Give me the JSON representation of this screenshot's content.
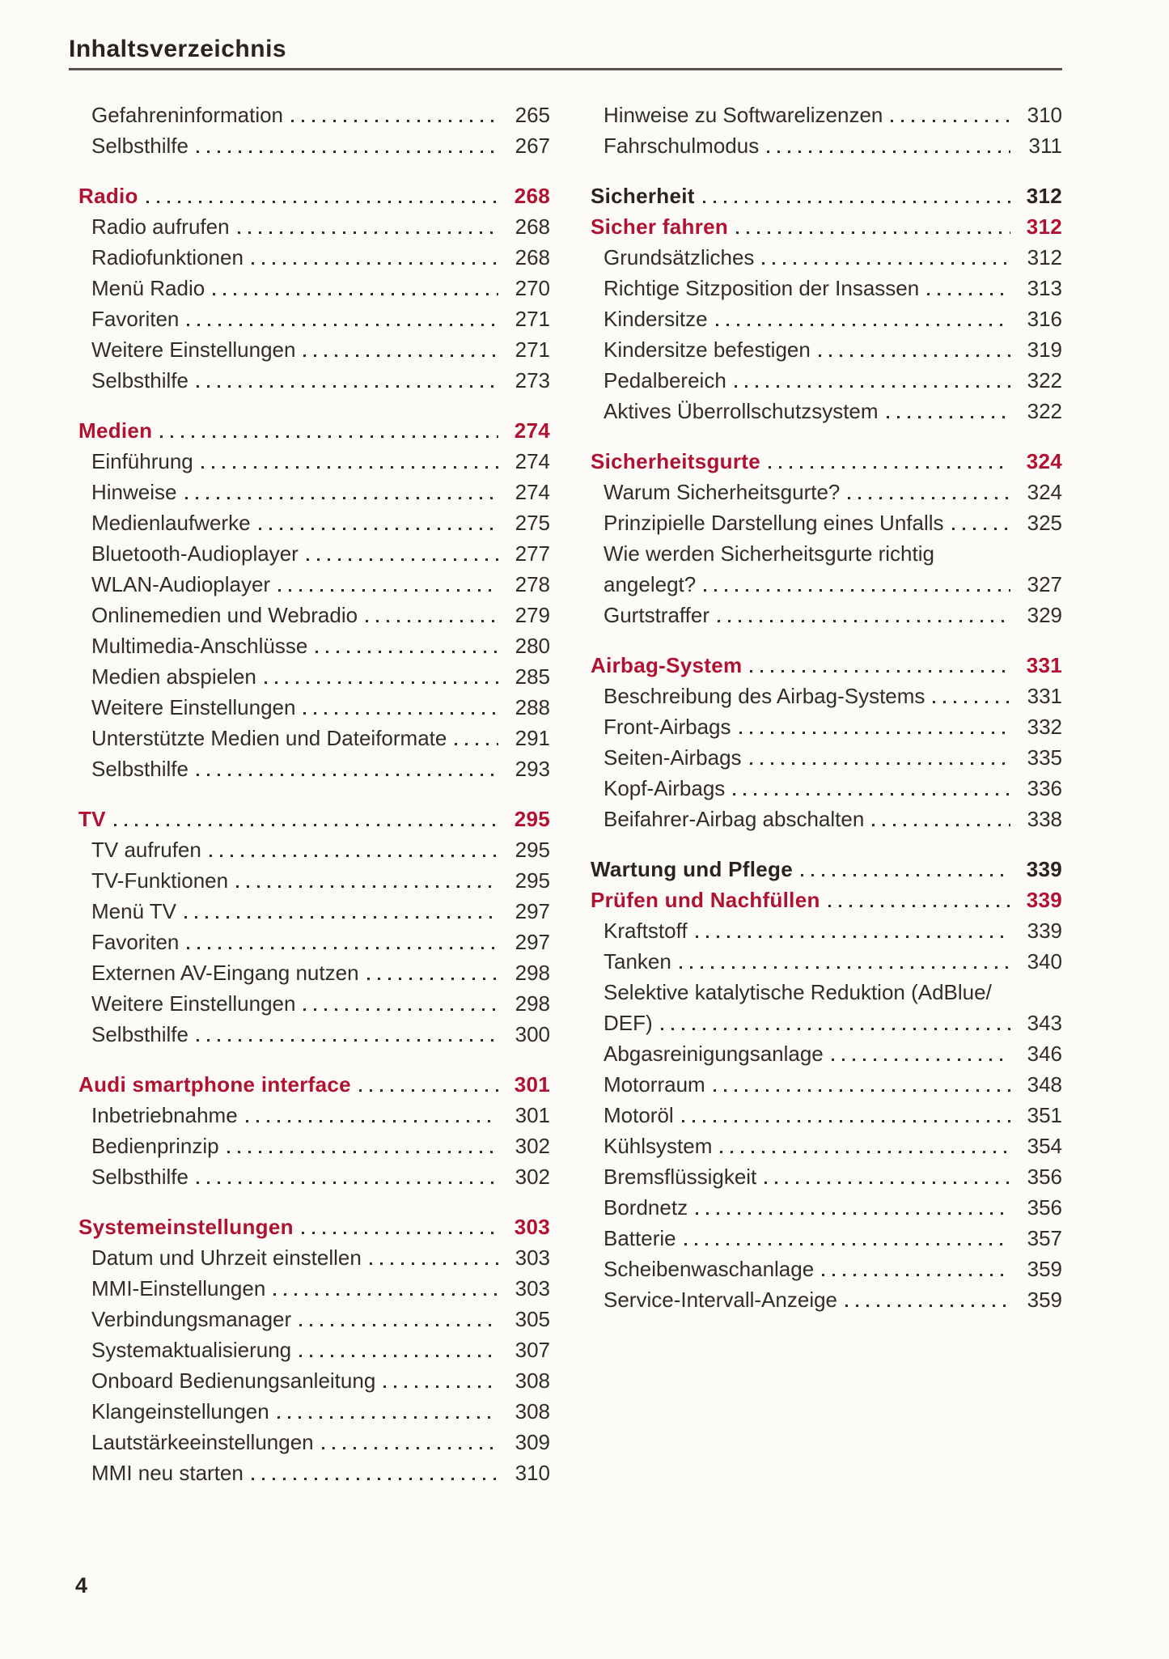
{
  "header": {
    "title": "Inhaltsverzeichnis"
  },
  "footer": {
    "page_number": "4"
  },
  "colors": {
    "accent_red": "#b01232",
    "text": "#312d27",
    "rule": "#55514a",
    "paper": "#fcfbf8"
  },
  "columns": [
    {
      "groups": [
        {
          "entries": [
            {
              "text": "Gefahreninformation",
              "page": "265"
            },
            {
              "text": "Selbsthilfe",
              "page": "267"
            }
          ]
        },
        {
          "entries": [
            {
              "text": "Radio",
              "page": "268",
              "style": "chapter"
            },
            {
              "text": "Radio aufrufen",
              "page": "268"
            },
            {
              "text": "Radiofunktionen",
              "page": "268"
            },
            {
              "text": "Menü Radio",
              "page": "270"
            },
            {
              "text": "Favoriten",
              "page": "271"
            },
            {
              "text": "Weitere Einstellungen",
              "page": "271"
            },
            {
              "text": "Selbsthilfe",
              "page": "273"
            }
          ]
        },
        {
          "entries": [
            {
              "text": "Medien",
              "page": "274",
              "style": "chapter"
            },
            {
              "text": "Einführung",
              "page": "274"
            },
            {
              "text": "Hinweise",
              "page": "274"
            },
            {
              "text": "Medienlaufwerke",
              "page": "275"
            },
            {
              "text": "Bluetooth-Audioplayer",
              "page": "277"
            },
            {
              "text": "WLAN-Audioplayer",
              "page": "278"
            },
            {
              "text": "Onlinemedien und Webradio",
              "page": "279"
            },
            {
              "text": "Multimedia-Anschlüsse",
              "page": "280"
            },
            {
              "text": "Medien abspielen",
              "page": "285"
            },
            {
              "text": "Weitere Einstellungen",
              "page": "288"
            },
            {
              "text": "Unterstützte Medien und Dateiformate",
              "page": "291"
            },
            {
              "text": "Selbsthilfe",
              "page": "293"
            }
          ]
        },
        {
          "entries": [
            {
              "text": "TV",
              "page": "295",
              "style": "chapter"
            },
            {
              "text": "TV aufrufen",
              "page": "295"
            },
            {
              "text": "TV-Funktionen",
              "page": "295"
            },
            {
              "text": "Menü TV",
              "page": "297"
            },
            {
              "text": "Favoriten",
              "page": "297"
            },
            {
              "text": "Externen AV-Eingang nutzen",
              "page": "298"
            },
            {
              "text": "Weitere Einstellungen",
              "page": "298"
            },
            {
              "text": "Selbsthilfe",
              "page": "300"
            }
          ]
        },
        {
          "entries": [
            {
              "text": "Audi smartphone interface",
              "page": "301",
              "style": "chapter"
            },
            {
              "text": "Inbetriebnahme",
              "page": "301"
            },
            {
              "text": "Bedienprinzip",
              "page": "302"
            },
            {
              "text": "Selbsthilfe",
              "page": "302"
            }
          ]
        },
        {
          "entries": [
            {
              "text": "Systemeinstellungen",
              "page": "303",
              "style": "chapter"
            },
            {
              "text": "Datum und Uhrzeit einstellen",
              "page": "303"
            },
            {
              "text": "MMI-Einstellungen",
              "page": "303"
            },
            {
              "text": "Verbindungsmanager",
              "page": "305"
            },
            {
              "text": "Systemaktualisierung",
              "page": "307"
            },
            {
              "text": "Onboard Bedienungsanleitung",
              "page": "308"
            },
            {
              "text": "Klangeinstellungen",
              "page": "308"
            },
            {
              "text": "Lautstärkeeinstellungen",
              "page": "309"
            },
            {
              "text": "MMI neu starten",
              "page": "310"
            }
          ]
        }
      ]
    },
    {
      "groups": [
        {
          "entries": [
            {
              "text": "Hinweise zu Softwarelizenzen",
              "page": "310"
            },
            {
              "text": "Fahrschulmodus",
              "page": "311"
            }
          ]
        },
        {
          "entries": [
            {
              "text": "Sicherheit",
              "page": "312",
              "style": "part"
            },
            {
              "text": "Sicher fahren",
              "page": "312",
              "style": "chapter"
            },
            {
              "text": "Grundsätzliches",
              "page": "312"
            },
            {
              "text": "Richtige Sitzposition der Insassen",
              "page": "313"
            },
            {
              "text": "Kindersitze",
              "page": "316"
            },
            {
              "text": "Kindersitze befestigen",
              "page": "319"
            },
            {
              "text": "Pedalbereich",
              "page": "322"
            },
            {
              "text": "Aktives Überrollschutzsystem",
              "page": "322"
            }
          ]
        },
        {
          "entries": [
            {
              "text": "Sicherheitsgurte",
              "page": "324",
              "style": "chapter"
            },
            {
              "text": "Warum Sicherheitsgurte?",
              "page": "324"
            },
            {
              "text": "Prinzipielle Darstellung eines Unfalls",
              "page": "325"
            },
            {
              "lines": [
                "Wie werden Sicherheitsgurte richtig",
                "angelegt?"
              ],
              "page": "327"
            },
            {
              "text": "Gurtstraffer",
              "page": "329"
            }
          ]
        },
        {
          "entries": [
            {
              "text": "Airbag-System",
              "page": "331",
              "style": "chapter"
            },
            {
              "text": "Beschreibung des Airbag-Systems",
              "page": "331"
            },
            {
              "text": "Front-Airbags",
              "page": "332"
            },
            {
              "text": "Seiten-Airbags",
              "page": "335"
            },
            {
              "text": "Kopf-Airbags",
              "page": "336"
            },
            {
              "text": "Beifahrer-Airbag abschalten",
              "page": "338"
            }
          ]
        },
        {
          "entries": [
            {
              "text": "Wartung und Pflege",
              "page": "339",
              "style": "part"
            },
            {
              "text": "Prüfen und Nachfüllen",
              "page": "339",
              "style": "chapter"
            },
            {
              "text": "Kraftstoff",
              "page": "339"
            },
            {
              "text": "Tanken",
              "page": "340"
            },
            {
              "lines": [
                "Selektive katalytische Reduktion (AdBlue/",
                "DEF)"
              ],
              "page": "343"
            },
            {
              "text": "Abgasreinigungsanlage",
              "page": "346"
            },
            {
              "text": "Motorraum",
              "page": "348"
            },
            {
              "text": "Motoröl",
              "page": "351"
            },
            {
              "text": "Kühlsystem",
              "page": "354"
            },
            {
              "text": "Bremsflüssigkeit",
              "page": "356"
            },
            {
              "text": "Bordnetz",
              "page": "356"
            },
            {
              "text": "Batterie",
              "page": "357"
            },
            {
              "text": "Scheibenwaschanlage",
              "page": "359"
            },
            {
              "text": "Service-Intervall-Anzeige",
              "page": "359"
            }
          ]
        }
      ]
    }
  ]
}
